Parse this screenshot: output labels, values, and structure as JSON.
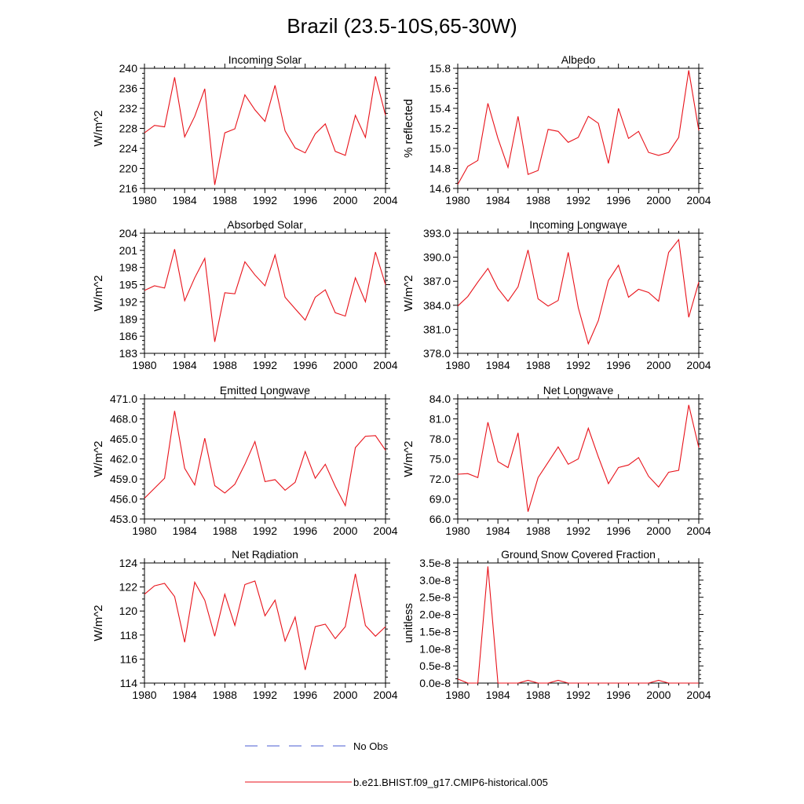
{
  "page": {
    "title": "Brazil (23.5-10S,65-30W)"
  },
  "colors": {
    "model": "#e8121a",
    "obs": "#4a5bd0",
    "axis": "#000000"
  },
  "legend": {
    "obs_label": "No Obs",
    "model_label": "b.e21.BHIST.f09_g17.CMIP6-historical.005"
  },
  "chart_data": [
    {
      "type": "line",
      "title": "Incoming Solar",
      "ylabel": "W/m^2",
      "xlim": [
        1980,
        2004
      ],
      "ylim": [
        216,
        240
      ],
      "yticks": [
        "240",
        "236",
        "232",
        "228",
        "224",
        "220",
        "216"
      ],
      "xticks": [
        "1980",
        "1984",
        "1988",
        "1992",
        "1996",
        "2000",
        "2004"
      ],
      "series": [
        {
          "name": "b.e21.BHIST.f09_g17.CMIP6-historical.005",
          "x": [
            1980,
            1981,
            1982,
            1983,
            1984,
            1985,
            1986,
            1987,
            1988,
            1989,
            1990,
            1991,
            1992,
            1993,
            1994,
            1995,
            1996,
            1997,
            1998,
            1999,
            2000,
            2001,
            2002,
            2003,
            2004
          ],
          "values": [
            227.1,
            228.6,
            228.3,
            238.2,
            226.3,
            230.4,
            235.9,
            216.7,
            227.1,
            227.9,
            234.7,
            231.7,
            229.4,
            236.6,
            227.5,
            224.1,
            223.1,
            226.9,
            228.9,
            223.4,
            222.6,
            230.6,
            226.2,
            238.4,
            230.6
          ]
        }
      ]
    },
    {
      "type": "line",
      "title": "Albedo",
      "ylabel": "% reflected",
      "xlim": [
        1980,
        2004
      ],
      "ylim": [
        14.6,
        15.8
      ],
      "yticks": [
        "15.8",
        "15.6",
        "15.4",
        "15.2",
        "15.0",
        "14.8",
        "14.6"
      ],
      "xticks": [
        "1980",
        "1984",
        "1988",
        "1992",
        "1996",
        "2000",
        "2004"
      ],
      "series": [
        {
          "name": "b.e21.BHIST.f09_g17.CMIP6-historical.005",
          "x": [
            1980,
            1981,
            1982,
            1983,
            1984,
            1985,
            1986,
            1987,
            1988,
            1989,
            1990,
            1991,
            1992,
            1993,
            1994,
            1995,
            1996,
            1997,
            1998,
            1999,
            2000,
            2001,
            2002,
            2003,
            2004
          ],
          "values": [
            14.64,
            14.82,
            14.88,
            15.45,
            15.1,
            14.81,
            15.32,
            14.74,
            14.78,
            15.19,
            15.17,
            15.06,
            15.11,
            15.32,
            15.25,
            14.85,
            15.4,
            15.1,
            15.17,
            14.96,
            14.93,
            14.96,
            15.11,
            15.78,
            15.18
          ]
        }
      ]
    },
    {
      "type": "line",
      "title": "Absorbed Solar",
      "ylabel": "W/m^2",
      "xlim": [
        1980,
        2004
      ],
      "ylim": [
        183,
        204
      ],
      "yticks": [
        "204",
        "201",
        "198",
        "195",
        "192",
        "189",
        "186",
        "183"
      ],
      "xticks": [
        "1980",
        "1984",
        "1988",
        "1992",
        "1996",
        "2000",
        "2004"
      ],
      "series": [
        {
          "name": "b.e21.BHIST.f09_g17.CMIP6-historical.005",
          "x": [
            1980,
            1981,
            1982,
            1983,
            1984,
            1985,
            1986,
            1987,
            1988,
            1989,
            1990,
            1991,
            1992,
            1993,
            1994,
            1995,
            1996,
            1997,
            1998,
            1999,
            2000,
            2001,
            2002,
            2003,
            2004
          ],
          "values": [
            194.0,
            194.8,
            194.4,
            201.2,
            192.2,
            196.2,
            199.6,
            185.0,
            193.6,
            193.4,
            199.0,
            196.7,
            194.8,
            200.2,
            192.8,
            190.8,
            188.8,
            192.8,
            194.1,
            190.1,
            189.5,
            196.2,
            192.0,
            200.7,
            195.0
          ]
        }
      ]
    },
    {
      "type": "line",
      "title": "Incoming Longwave",
      "ylabel": "W/m^2",
      "xlim": [
        1980,
        2004
      ],
      "ylim": [
        378.0,
        393.0
      ],
      "yticks": [
        "393.0",
        "390.0",
        "387.0",
        "384.0",
        "381.0",
        "378.0"
      ],
      "xticks": [
        "1980",
        "1984",
        "1988",
        "1992",
        "1996",
        "2000",
        "2004"
      ],
      "series": [
        {
          "name": "b.e21.BHIST.f09_g17.CMIP6-historical.005",
          "x": [
            1980,
            1981,
            1982,
            1983,
            1984,
            1985,
            1986,
            1987,
            1988,
            1989,
            1990,
            1991,
            1992,
            1993,
            1994,
            1995,
            1996,
            1997,
            1998,
            1999,
            2000,
            2001,
            2002,
            2003,
            2004
          ],
          "values": [
            383.9,
            385.1,
            386.9,
            388.6,
            386.1,
            384.5,
            386.3,
            390.9,
            384.8,
            383.9,
            384.6,
            390.6,
            383.7,
            379.2,
            382.1,
            387.1,
            389.0,
            385.0,
            386.0,
            385.6,
            384.5,
            390.6,
            392.2,
            382.5,
            386.9
          ]
        }
      ]
    },
    {
      "type": "line",
      "title": "Emitted Longwave",
      "ylabel": "W/m^2",
      "xlim": [
        1980,
        2004
      ],
      "ylim": [
        453.0,
        471.0
      ],
      "yticks": [
        "471.0",
        "468.0",
        "465.0",
        "462.0",
        "459.0",
        "456.0",
        "453.0"
      ],
      "xticks": [
        "1980",
        "1984",
        "1988",
        "1992",
        "1996",
        "2000",
        "2004"
      ],
      "series": [
        {
          "name": "b.e21.BHIST.f09_g17.CMIP6-historical.005",
          "x": [
            1980,
            1981,
            1982,
            1983,
            1984,
            1985,
            1986,
            1987,
            1988,
            1989,
            1990,
            1991,
            1992,
            1993,
            1994,
            1995,
            1996,
            1997,
            1998,
            1999,
            2000,
            2001,
            2002,
            2003,
            2004
          ],
          "values": [
            456.1,
            457.6,
            459.1,
            469.2,
            460.6,
            458.1,
            465.1,
            458.0,
            456.9,
            458.2,
            461.2,
            464.6,
            458.6,
            458.9,
            457.3,
            458.5,
            463.1,
            459.1,
            461.2,
            457.9,
            455.0,
            463.7,
            465.4,
            465.5,
            463.3
          ]
        }
      ]
    },
    {
      "type": "line",
      "title": "Net Longwave",
      "ylabel": "W/m^2",
      "xlim": [
        1980,
        2004
      ],
      "ylim": [
        66.0,
        84.0
      ],
      "yticks": [
        "84.0",
        "81.0",
        "78.0",
        "75.0",
        "72.0",
        "69.0",
        "66.0"
      ],
      "xticks": [
        "1980",
        "1984",
        "1988",
        "1992",
        "1996",
        "2000",
        "2004"
      ],
      "series": [
        {
          "name": "b.e21.BHIST.f09_g17.CMIP6-historical.005",
          "x": [
            1980,
            1981,
            1982,
            1983,
            1984,
            1985,
            1986,
            1987,
            1988,
            1989,
            1990,
            1991,
            1992,
            1993,
            1994,
            1995,
            1996,
            1997,
            1998,
            1999,
            2000,
            2001,
            2002,
            2003,
            2004
          ],
          "values": [
            72.7,
            72.8,
            72.2,
            80.5,
            74.6,
            73.7,
            78.9,
            67.1,
            72.2,
            74.5,
            76.8,
            74.2,
            75.0,
            79.6,
            75.3,
            71.3,
            73.7,
            74.1,
            75.2,
            72.4,
            70.8,
            73.0,
            73.3,
            83.1,
            76.7
          ]
        }
      ]
    },
    {
      "type": "line",
      "title": "Net Radiation",
      "ylabel": "W/m^2",
      "xlim": [
        1980,
        2004
      ],
      "ylim": [
        114,
        124
      ],
      "yticks": [
        "124",
        "122",
        "120",
        "118",
        "116",
        "114"
      ],
      "xticks": [
        "1980",
        "1984",
        "1988",
        "1992",
        "1996",
        "2000",
        "2004"
      ],
      "series": [
        {
          "name": "b.e21.BHIST.f09_g17.CMIP6-historical.005",
          "x": [
            1980,
            1981,
            1982,
            1983,
            1984,
            1985,
            1986,
            1987,
            1988,
            1989,
            1990,
            1991,
            1992,
            1993,
            1994,
            1995,
            1996,
            1997,
            1998,
            1999,
            2000,
            2001,
            2002,
            2003,
            2004
          ],
          "values": [
            121.4,
            122.1,
            122.3,
            121.2,
            117.4,
            122.4,
            120.9,
            117.9,
            121.4,
            118.8,
            122.2,
            122.5,
            119.6,
            120.9,
            117.5,
            119.5,
            115.1,
            118.7,
            118.9,
            117.7,
            118.7,
            123.1,
            118.8,
            117.9,
            118.7
          ]
        }
      ]
    },
    {
      "type": "line",
      "title": "Ground Snow Covered Fraction",
      "ylabel": "unitless",
      "xlim": [
        1980,
        2004
      ],
      "ylim": [
        0.0,
        3.5e-08
      ],
      "yticks": [
        "3.5e-8",
        "3.0e-8",
        "2.5e-8",
        "2.0e-8",
        "1.5e-8",
        "1.0e-8",
        "0.5e-8",
        "0.0e-8"
      ],
      "xticks": [
        "1980",
        "1984",
        "1988",
        "1992",
        "1996",
        "2000",
        "2004"
      ],
      "series": [
        {
          "name": "b.e21.BHIST.f09_g17.CMIP6-historical.005",
          "x": [
            1980,
            1981,
            1982,
            1983,
            1984,
            1985,
            1986,
            1987,
            1988,
            1989,
            1990,
            1991,
            1992,
            1993,
            1994,
            1995,
            1996,
            1997,
            1998,
            1999,
            2000,
            2001,
            2002,
            2003,
            2004
          ],
          "values": [
            1.2e-09,
            0,
            0,
            3.4e-08,
            0,
            0,
            0,
            8e-10,
            0,
            0,
            8e-10,
            0,
            0,
            0,
            0,
            0,
            0,
            0,
            0,
            0,
            8e-10,
            0,
            0,
            0,
            0
          ]
        }
      ]
    }
  ]
}
